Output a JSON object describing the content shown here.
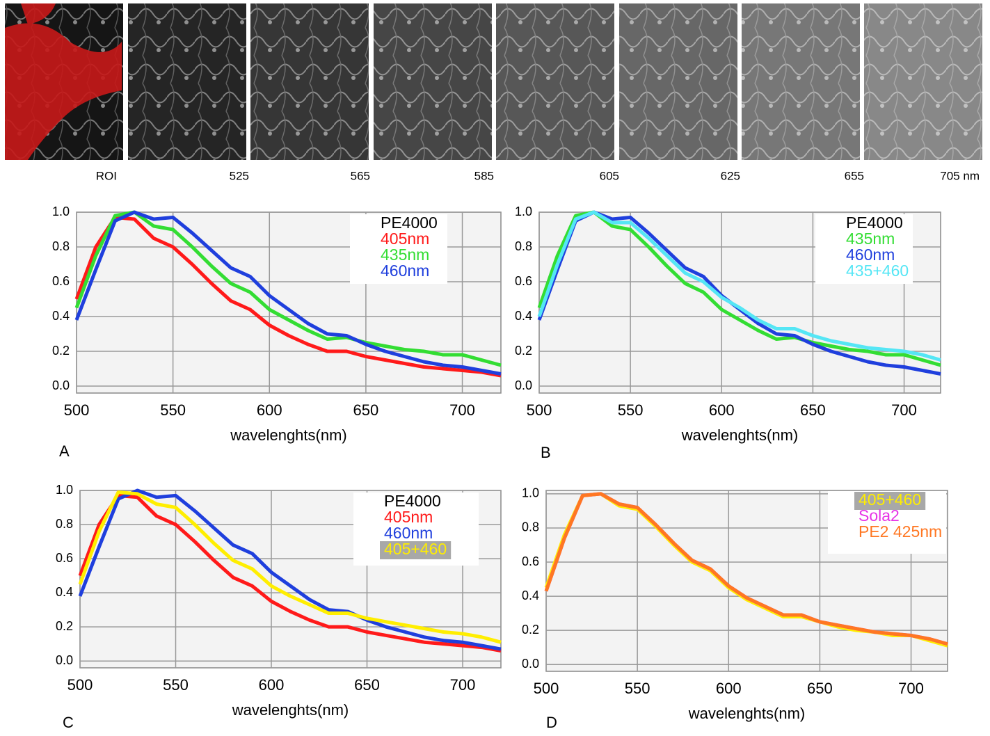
{
  "images": {
    "labels": [
      "ROI",
      "525",
      "565",
      "585",
      "605",
      "625",
      "655",
      "705 nm"
    ]
  },
  "chart_data": [
    {
      "type": "line",
      "panel": "A",
      "xlabel": "wavelenghts(nm)",
      "legend_title": "PE4000",
      "legend": "upper right",
      "grid": true,
      "x": [
        500,
        510,
        520,
        530,
        540,
        550,
        560,
        570,
        580,
        590,
        600,
        610,
        620,
        630,
        640,
        650,
        660,
        670,
        680,
        690,
        700,
        710,
        720
      ],
      "xlim": [
        500,
        720
      ],
      "ylim": [
        -0.04,
        1.0
      ],
      "xticks": [
        500,
        550,
        600,
        650,
        700
      ],
      "yticks": [
        {
          "value": 0,
          "label": "0.0"
        },
        0.2,
        0.4,
        0.6,
        0.8,
        {
          "value": 1,
          "label": "1.0"
        }
      ],
      "series": [
        {
          "name": "405nm",
          "color": "#ff1a1a",
          "values": [
            0.5,
            0.8,
            0.97,
            0.96,
            0.85,
            0.8,
            0.7,
            0.59,
            0.49,
            0.44,
            0.35,
            0.29,
            0.24,
            0.2,
            0.2,
            0.17,
            0.15,
            0.13,
            0.11,
            0.1,
            0.09,
            0.08,
            0.06
          ]
        },
        {
          "name": "435nm",
          "color": "#33dd33",
          "values": [
            0.45,
            0.75,
            0.98,
            1.0,
            0.92,
            0.9,
            0.8,
            0.69,
            0.59,
            0.54,
            0.44,
            0.38,
            0.32,
            0.27,
            0.28,
            0.25,
            0.23,
            0.21,
            0.2,
            0.18,
            0.18,
            0.15,
            0.12
          ]
        },
        {
          "name": "460nm",
          "color": "#1f3fdd",
          "values": [
            0.38,
            0.67,
            0.95,
            1.0,
            0.96,
            0.97,
            0.88,
            0.78,
            0.68,
            0.63,
            0.52,
            0.44,
            0.36,
            0.3,
            0.29,
            0.24,
            0.2,
            0.17,
            0.14,
            0.12,
            0.11,
            0.09,
            0.07
          ]
        }
      ]
    },
    {
      "type": "line",
      "panel": "B",
      "xlabel": "wavelenghts(nm)",
      "legend_title": "PE4000",
      "legend": "upper right",
      "grid": true,
      "x": [
        500,
        510,
        520,
        530,
        540,
        550,
        560,
        570,
        580,
        590,
        600,
        610,
        620,
        630,
        640,
        650,
        660,
        670,
        680,
        690,
        700,
        710,
        720
      ],
      "xlim": [
        500,
        720
      ],
      "ylim": [
        -0.04,
        1.0
      ],
      "xticks": [
        500,
        550,
        600,
        650,
        700
      ],
      "yticks": [
        {
          "value": 0,
          "label": "0.0"
        },
        0.2,
        0.4,
        0.6,
        0.8,
        {
          "value": 1,
          "label": "1.0"
        }
      ],
      "series": [
        {
          "name": "435nm",
          "color": "#33dd33",
          "values": [
            0.45,
            0.75,
            0.98,
            1.0,
            0.92,
            0.9,
            0.8,
            0.69,
            0.59,
            0.54,
            0.44,
            0.38,
            0.32,
            0.27,
            0.28,
            0.25,
            0.23,
            0.21,
            0.2,
            0.18,
            0.18,
            0.15,
            0.12
          ]
        },
        {
          "name": "460nm",
          "color": "#1f3fdd",
          "values": [
            0.38,
            0.67,
            0.95,
            1.0,
            0.96,
            0.97,
            0.88,
            0.78,
            0.68,
            0.63,
            0.52,
            0.44,
            0.36,
            0.3,
            0.29,
            0.24,
            0.2,
            0.17,
            0.14,
            0.12,
            0.11,
            0.09,
            0.07
          ]
        },
        {
          "name": "435+460",
          "color": "#55e6f5",
          "values": [
            0.4,
            0.7,
            0.96,
            1.0,
            0.94,
            0.94,
            0.85,
            0.75,
            0.65,
            0.6,
            0.51,
            0.45,
            0.38,
            0.33,
            0.33,
            0.29,
            0.26,
            0.24,
            0.22,
            0.21,
            0.2,
            0.18,
            0.15
          ]
        }
      ]
    },
    {
      "type": "line",
      "panel": "C",
      "xlabel": "wavelenghts(nm)",
      "legend_title": "PE4000",
      "legend": "upper right",
      "grid": true,
      "x": [
        500,
        510,
        520,
        530,
        540,
        550,
        560,
        570,
        580,
        590,
        600,
        610,
        620,
        630,
        640,
        650,
        660,
        670,
        680,
        690,
        700,
        710,
        720
      ],
      "xlim": [
        500,
        720
      ],
      "ylim": [
        -0.04,
        1.0
      ],
      "xticks": [
        500,
        550,
        600,
        650,
        700
      ],
      "yticks": [
        {
          "value": 0,
          "label": "0.0"
        },
        0.2,
        0.4,
        0.6,
        0.8,
        {
          "value": 1,
          "label": "1.0"
        }
      ],
      "series": [
        {
          "name": "405nm",
          "color": "#ff1a1a",
          "values": [
            0.5,
            0.8,
            0.97,
            0.96,
            0.85,
            0.8,
            0.7,
            0.59,
            0.49,
            0.44,
            0.35,
            0.29,
            0.24,
            0.2,
            0.2,
            0.17,
            0.15,
            0.13,
            0.11,
            0.1,
            0.09,
            0.08,
            0.06
          ]
        },
        {
          "name": "460nm",
          "color": "#1f3fdd",
          "values": [
            0.38,
            0.67,
            0.95,
            1.0,
            0.96,
            0.97,
            0.88,
            0.78,
            0.68,
            0.63,
            0.52,
            0.44,
            0.36,
            0.3,
            0.29,
            0.24,
            0.2,
            0.17,
            0.14,
            0.12,
            0.11,
            0.09,
            0.07
          ]
        },
        {
          "name": "405+460",
          "color": "#ffee00",
          "label_bg": "#a8a8a8",
          "values": [
            0.45,
            0.76,
            0.99,
            0.98,
            0.92,
            0.9,
            0.8,
            0.69,
            0.59,
            0.54,
            0.44,
            0.38,
            0.33,
            0.28,
            0.28,
            0.25,
            0.23,
            0.21,
            0.19,
            0.17,
            0.16,
            0.14,
            0.11
          ]
        }
      ]
    },
    {
      "type": "line",
      "panel": "D",
      "xlabel": "wavelenghts(nm)",
      "legend": "upper right",
      "grid": true,
      "x": [
        500,
        510,
        520,
        530,
        540,
        550,
        560,
        570,
        580,
        590,
        600,
        610,
        620,
        630,
        640,
        650,
        660,
        670,
        680,
        690,
        700,
        710,
        720
      ],
      "xlim": [
        500,
        720
      ],
      "ylim": [
        -0.04,
        1.02
      ],
      "xticks": [
        500,
        550,
        600,
        650,
        700
      ],
      "yticks": [
        {
          "value": 0,
          "label": "0.0"
        },
        0.2,
        0.4,
        0.6,
        0.8,
        {
          "value": 1,
          "label": "1.0"
        }
      ],
      "series": [
        {
          "name": "405+460",
          "color": "#ffee00",
          "label_bg": "#a8a8a8",
          "values": [
            0.45,
            0.76,
            0.99,
            1.0,
            0.93,
            0.91,
            0.81,
            0.7,
            0.6,
            0.55,
            0.45,
            0.38,
            0.33,
            0.28,
            0.28,
            0.25,
            0.22,
            0.2,
            0.19,
            0.17,
            0.17,
            0.14,
            0.11
          ]
        },
        {
          "name": "Sola2",
          "color": "#e633e6",
          "values": [
            0.43,
            0.74,
            0.99,
            1.0,
            0.94,
            0.92,
            0.82,
            0.71,
            0.61,
            0.56,
            0.46,
            0.39,
            0.34,
            0.29,
            0.29,
            0.25,
            0.23,
            0.21,
            0.19,
            0.18,
            0.17,
            0.15,
            0.12
          ]
        },
        {
          "name": "PE2 425nm",
          "color": "#ff7722",
          "values": [
            0.43,
            0.74,
            0.99,
            1.0,
            0.94,
            0.92,
            0.82,
            0.71,
            0.61,
            0.56,
            0.46,
            0.39,
            0.34,
            0.29,
            0.29,
            0.25,
            0.23,
            0.21,
            0.19,
            0.18,
            0.17,
            0.15,
            0.12
          ]
        }
      ]
    }
  ]
}
